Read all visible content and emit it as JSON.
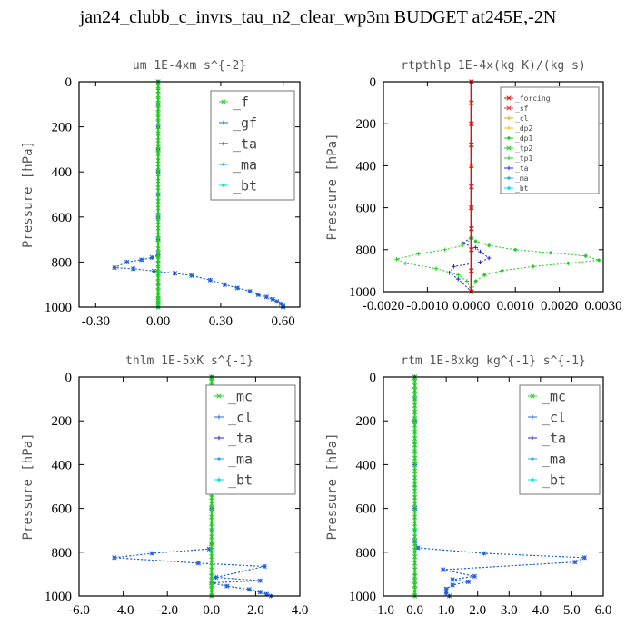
{
  "page": {
    "title": "jan24_clubb_c_invrs_tau_n2_clear_wp3m  BUDGET at245E,-2N"
  },
  "chart_data": [
    {
      "type": "line",
      "title": "um   1E-4xm s^{-2}",
      "ylabel": "Pressure [hPa]",
      "xlim": [
        -0.38,
        0.68
      ],
      "ylim": [
        1000,
        0
      ],
      "xticks": [
        -0.3,
        0.0,
        0.3,
        0.6
      ],
      "xtick_labels": [
        "-0.30",
        "0.00",
        "0.30",
        "0.60"
      ],
      "yticks": [
        0,
        200,
        400,
        600,
        800,
        1000
      ],
      "ytick_labels": [
        "0",
        "200",
        "400",
        "600",
        "800",
        "1000"
      ],
      "legend_position": "top-right",
      "legend_labels": [
        "_f",
        "_gf",
        "_ta",
        "_ma",
        "_bt"
      ],
      "series": [
        {
          "name": "_f",
          "color": "#22cc22",
          "x": [
            0,
            0,
            0,
            0,
            0,
            0,
            0,
            0,
            0,
            0,
            0,
            0,
            0,
            0,
            0,
            0,
            0,
            0,
            0,
            0,
            0,
            0,
            0,
            0,
            0,
            0,
            0,
            0,
            0,
            0,
            0,
            0,
            0,
            0,
            0,
            0,
            0,
            0,
            0,
            0,
            0,
            0,
            0,
            0
          ],
          "y": [
            0,
            20,
            40,
            60,
            80,
            100,
            120,
            140,
            160,
            180,
            200,
            230,
            260,
            290,
            320,
            350,
            380,
            410,
            440,
            470,
            500,
            530,
            560,
            590,
            620,
            650,
            680,
            710,
            740,
            770,
            790,
            810,
            830,
            850,
            870,
            890,
            910,
            930,
            950,
            960,
            970,
            980,
            990,
            1000
          ]
        },
        {
          "name": "_gf",
          "color": "#1a6fd0",
          "x": [
            0,
            0,
            0,
            0,
            0,
            0,
            0,
            0,
            0,
            0,
            -0.03,
            -0.08,
            -0.15,
            -0.21,
            -0.12,
            -0.02,
            0.08,
            0.16,
            0.25,
            0.32,
            0.38,
            0.44,
            0.48,
            0.52,
            0.55,
            0.57,
            0.59,
            0.6,
            0.6
          ],
          "y": [
            0,
            100,
            200,
            300,
            400,
            500,
            600,
            700,
            760,
            770,
            780,
            790,
            800,
            825,
            830,
            840,
            850,
            860,
            880,
            900,
            915,
            930,
            945,
            955,
            965,
            975,
            985,
            995,
            1000
          ]
        },
        {
          "name": "_ta",
          "color": "#2222dd",
          "x": [
            0,
            0,
            0,
            0,
            0,
            0,
            0,
            0,
            0,
            0,
            -0.03,
            -0.08,
            -0.15,
            -0.21,
            -0.12,
            -0.02,
            0.08,
            0.16,
            0.25,
            0.32,
            0.38,
            0.44,
            0.48,
            0.52,
            0.55,
            0.57,
            0.59,
            0.6,
            0.6
          ],
          "y": [
            0,
            100,
            200,
            300,
            400,
            500,
            600,
            700,
            760,
            770,
            780,
            790,
            800,
            825,
            830,
            840,
            850,
            860,
            880,
            900,
            915,
            930,
            945,
            955,
            965,
            975,
            985,
            995,
            1000
          ]
        },
        {
          "name": "_ma",
          "color": "#22aadd",
          "x": [
            0,
            0,
            0,
            0,
            0,
            0,
            0,
            0,
            0,
            0,
            0
          ],
          "y": [
            0,
            100,
            200,
            300,
            400,
            500,
            600,
            700,
            800,
            900,
            1000
          ]
        },
        {
          "name": "_bt",
          "color": "#00e0e0",
          "x": [
            0,
            0,
            0,
            0,
            0,
            0,
            0,
            0,
            0,
            0,
            0
          ],
          "y": [
            0,
            100,
            200,
            300,
            400,
            500,
            600,
            700,
            800,
            900,
            1000
          ]
        }
      ]
    },
    {
      "type": "line",
      "title": "rtpthlp   1E-4x(kg K)/(kg s)",
      "ylabel": "Pressure [hPa]",
      "xlim": [
        -0.002,
        0.003
      ],
      "ylim": [
        1000,
        0
      ],
      "xticks": [
        -0.002,
        -0.001,
        0,
        0.001,
        0.002,
        0.003
      ],
      "xtick_labels": [
        "-0.0020",
        "-0.0010",
        "0.0000",
        "0.0010",
        "0.0020",
        "0.0030"
      ],
      "yticks": [
        0,
        200,
        400,
        600,
        800,
        1000
      ],
      "ytick_labels": [
        "0",
        "200",
        "400",
        "600",
        "800",
        "1000"
      ],
      "legend_position": "top-right",
      "legend_labels": [
        "_forcing",
        "_sf",
        "_cl",
        "_dp2",
        "_dp1",
        "_tp2",
        "_tp1",
        "_ta",
        "_ma",
        "_bt"
      ],
      "series": [
        {
          "name": "_forcing",
          "color": "#dd1111",
          "x": [
            0,
            0,
            0,
            0,
            0,
            0,
            0,
            0,
            0,
            0,
            0
          ],
          "y": [
            0,
            100,
            200,
            300,
            400,
            500,
            600,
            700,
            800,
            900,
            1000
          ]
        },
        {
          "name": "_sf",
          "color": "#ee3333",
          "x": [
            0,
            0,
            0,
            0,
            0,
            0,
            0,
            0,
            0,
            0,
            0
          ],
          "y": [
            0,
            100,
            200,
            300,
            400,
            500,
            600,
            700,
            800,
            900,
            1000
          ]
        },
        {
          "name": "_dp1",
          "color": "#22cc22",
          "x": [
            0,
            0,
            0,
            0.0001,
            0.0004,
            0.001,
            0.0018,
            0.0026,
            0.0029,
            0.0022,
            0.0014,
            0.0007,
            0.0003,
            0.0001,
            0
          ],
          "y": [
            0,
            600,
            740,
            760,
            780,
            800,
            815,
            830,
            850,
            865,
            880,
            900,
            920,
            950,
            1000
          ]
        },
        {
          "name": "_tp1",
          "color": "#22cc22",
          "x": [
            0,
            0,
            0,
            -0.0002,
            -0.0006,
            -0.0012,
            -0.0017,
            -0.0015,
            -0.0008,
            -0.0003,
            -0.0001,
            0
          ],
          "y": [
            0,
            600,
            750,
            780,
            800,
            820,
            845,
            865,
            890,
            920,
            950,
            1000
          ]
        },
        {
          "name": "_ta",
          "color": "#2222dd",
          "x": [
            0,
            0,
            -0.0002,
            0.0001,
            0.0002,
            0.0004,
            0.0002,
            -0.0004,
            -0.0005,
            -0.0003,
            0
          ],
          "y": [
            0,
            740,
            770,
            790,
            810,
            840,
            860,
            880,
            910,
            940,
            1000
          ]
        }
      ]
    },
    {
      "type": "line",
      "title": "thlm   1E-5xK s^{-1}",
      "ylabel": "Pressure [hPa]",
      "xlim": [
        -6,
        4
      ],
      "ylim": [
        1000,
        0
      ],
      "xticks": [
        -6,
        -4,
        -2,
        0,
        2,
        4
      ],
      "xtick_labels": [
        "-6.0",
        "-4.0",
        "-2.0",
        "0.0",
        "2.0",
        "4.0"
      ],
      "yticks": [
        0,
        200,
        400,
        600,
        800,
        1000
      ],
      "ytick_labels": [
        "0",
        "200",
        "400",
        "600",
        "800",
        "1000"
      ],
      "legend_position": "top-right",
      "legend_labels": [
        "_mc",
        "_cl",
        "_ta",
        "_ma",
        "_bt"
      ],
      "series": [
        {
          "name": "_mc",
          "color": "#22cc22",
          "x": [
            0,
            0,
            0,
            0,
            0,
            0,
            0,
            0,
            0,
            0,
            0,
            0,
            0,
            0,
            0,
            0,
            0,
            0,
            0,
            0,
            0,
            0,
            0,
            0,
            0,
            0,
            0,
            0,
            0,
            0,
            0,
            0,
            0,
            0,
            0,
            0,
            0,
            0
          ],
          "y": [
            0,
            20,
            40,
            60,
            80,
            100,
            130,
            160,
            190,
            220,
            250,
            280,
            310,
            340,
            370,
            400,
            430,
            460,
            490,
            520,
            550,
            580,
            610,
            640,
            670,
            700,
            730,
            760,
            790,
            820,
            850,
            880,
            910,
            930,
            950,
            970,
            985,
            1000
          ]
        },
        {
          "name": "_cl",
          "color": "#1a6fd0",
          "x": [
            0,
            0,
            0,
            0,
            0,
            -0.1,
            -2.7,
            -4.4,
            -0.6,
            2.4,
            0.2,
            2.2,
            0,
            0.7,
            1.7,
            2.2,
            2.5,
            2.7
          ],
          "y": [
            0,
            200,
            400,
            600,
            760,
            785,
            805,
            825,
            850,
            865,
            915,
            930,
            940,
            955,
            970,
            982,
            992,
            1000
          ]
        },
        {
          "name": "_ta",
          "color": "#2222dd",
          "x": [
            0,
            0,
            0,
            0,
            0,
            -0.1,
            -2.7,
            -4.4,
            -0.6,
            2.4,
            0.2,
            2.2,
            0,
            0.7,
            1.7,
            2.2,
            2.5,
            2.7
          ],
          "y": [
            0,
            200,
            400,
            600,
            760,
            785,
            805,
            825,
            850,
            865,
            915,
            930,
            940,
            955,
            970,
            982,
            992,
            1000
          ]
        },
        {
          "name": "_ma",
          "color": "#22aadd",
          "x": [
            0,
            0,
            0,
            0,
            0,
            0,
            0,
            0,
            0,
            0,
            0
          ],
          "y": [
            0,
            100,
            200,
            300,
            400,
            500,
            600,
            700,
            800,
            900,
            1000
          ]
        },
        {
          "name": "_bt",
          "color": "#00e0e0",
          "x": [
            0,
            0,
            0,
            0,
            0,
            0,
            0,
            0,
            0,
            0,
            0
          ],
          "y": [
            0,
            100,
            200,
            300,
            400,
            500,
            600,
            700,
            800,
            900,
            1000
          ]
        }
      ]
    },
    {
      "type": "line",
      "title": "rtm   1E-8xkg kg^{-1} s^{-1}",
      "ylabel": "Pressure [hPa]",
      "xlim": [
        -1,
        6
      ],
      "ylim": [
        1000,
        0
      ],
      "xticks": [
        -1,
        0,
        1,
        2,
        3,
        4,
        5,
        6
      ],
      "xtick_labels": [
        "-1.0",
        "0.0",
        "1.0",
        "2.0",
        "3.0",
        "4.0",
        "5.0",
        "6.0"
      ],
      "yticks": [
        0,
        200,
        400,
        600,
        800,
        1000
      ],
      "ytick_labels": [
        "0",
        "200",
        "400",
        "600",
        "800",
        "1000"
      ],
      "legend_position": "top-right",
      "legend_labels": [
        "_mc",
        "_cl",
        "_ta",
        "_ma",
        "_bt"
      ],
      "series": [
        {
          "name": "_mc",
          "color": "#22cc22",
          "x": [
            0,
            0,
            0,
            0,
            0,
            0,
            0,
            0,
            0,
            0,
            0,
            0,
            0,
            0,
            0,
            0,
            0,
            0,
            0,
            0,
            0,
            0,
            0,
            0,
            0,
            0,
            0,
            0,
            0,
            0,
            0,
            0,
            0,
            0,
            0,
            0,
            0,
            0
          ],
          "y": [
            0,
            20,
            40,
            60,
            80,
            100,
            130,
            160,
            190,
            220,
            250,
            280,
            310,
            340,
            370,
            400,
            430,
            460,
            490,
            520,
            550,
            580,
            610,
            640,
            670,
            700,
            730,
            760,
            790,
            820,
            850,
            880,
            910,
            930,
            950,
            970,
            985,
            1000
          ]
        },
        {
          "name": "_cl",
          "color": "#1a6fd0",
          "x": [
            0,
            0,
            0,
            0,
            0,
            0.1,
            2.2,
            5.4,
            5.1,
            0.9,
            1.9,
            1.2,
            1.7,
            1.2,
            1.0,
            1.0,
            1.1
          ],
          "y": [
            0,
            200,
            400,
            600,
            750,
            780,
            805,
            825,
            845,
            880,
            910,
            925,
            935,
            950,
            968,
            985,
            1000
          ]
        },
        {
          "name": "_ta",
          "color": "#2222dd",
          "x": [
            0,
            0,
            0,
            0,
            0,
            0.1,
            2.2,
            5.4,
            5.1,
            0.9,
            1.9,
            1.2,
            1.7,
            1.2,
            1.0,
            1.0,
            1.1
          ],
          "y": [
            0,
            200,
            400,
            600,
            750,
            780,
            805,
            825,
            845,
            880,
            910,
            925,
            935,
            950,
            968,
            985,
            1000
          ]
        },
        {
          "name": "_ma",
          "color": "#22aadd",
          "x": [
            0,
            0,
            0,
            0,
            0,
            0,
            0,
            0,
            0,
            0,
            0
          ],
          "y": [
            0,
            100,
            200,
            300,
            400,
            500,
            600,
            700,
            800,
            900,
            1000
          ]
        },
        {
          "name": "_bt",
          "color": "#00e0e0",
          "x": [
            0,
            0,
            0,
            0,
            0,
            0,
            0,
            0,
            0,
            0,
            0
          ],
          "y": [
            0,
            100,
            200,
            300,
            400,
            500,
            600,
            700,
            800,
            900,
            1000
          ]
        }
      ]
    }
  ]
}
